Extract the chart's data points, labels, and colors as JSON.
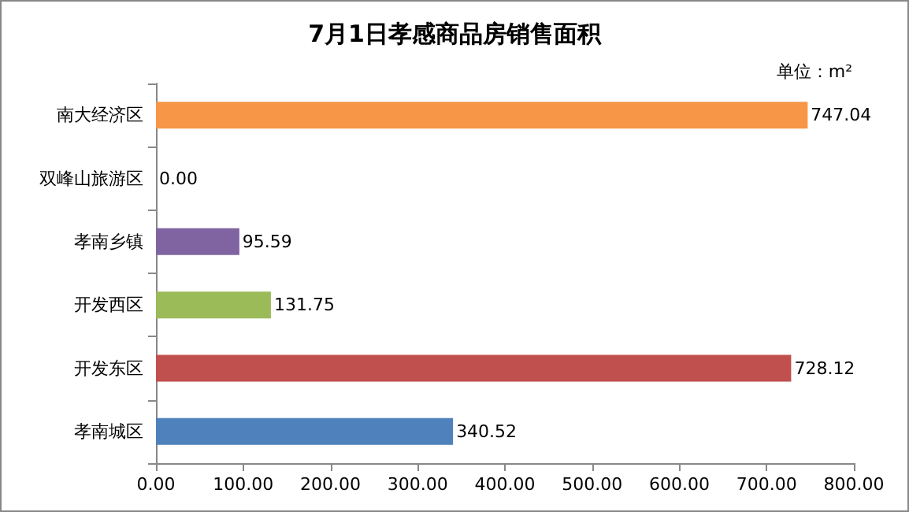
{
  "chart_data": {
    "type": "bar",
    "orientation": "horizontal",
    "title": "7月1日孝感商品房销售面积",
    "subtitle": "单位：m²",
    "categories": [
      "南大经济区",
      "双峰山旅游区",
      "孝南乡镇",
      "开发西区",
      "开发东区",
      "孝南城区"
    ],
    "values": [
      747.04,
      0,
      95.59,
      131.75,
      728.12,
      340.52
    ],
    "colors": [
      "#f79646",
      "#4bacc6",
      "#8064a2",
      "#9bbb59",
      "#c0504d",
      "#4f81bd"
    ],
    "value_labels": [
      "747.04",
      "0.00",
      "95.59",
      "131.75",
      "728.12",
      "340.52"
    ],
    "xlim": [
      0,
      800
    ],
    "xticks": [
      {
        "value": 0,
        "label": "0.00"
      },
      {
        "value": 100,
        "label": "100.00"
      },
      {
        "value": 200,
        "label": "200.00"
      },
      {
        "value": 300,
        "label": "300.00"
      },
      {
        "value": 400,
        "label": "400.00"
      },
      {
        "value": 500,
        "label": "500.00"
      },
      {
        "value": 600,
        "label": "600.00"
      },
      {
        "value": 700,
        "label": "700.00"
      },
      {
        "value": 800,
        "label": "800.00"
      }
    ]
  }
}
